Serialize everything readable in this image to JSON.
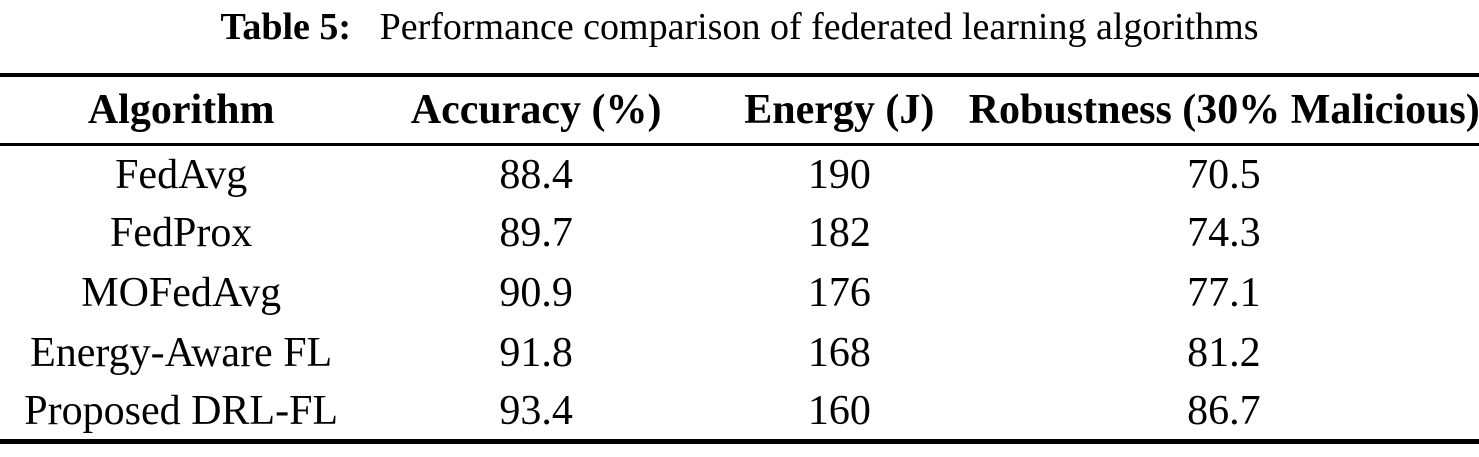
{
  "caption": {
    "label": "Table 5:",
    "text": "Performance comparison of federated learning algorithms"
  },
  "table": {
    "headers": [
      "Algorithm",
      "Accuracy (%)",
      "Energy (J)",
      "Robustness (30% Malicious)"
    ],
    "rows": [
      [
        "FedAvg",
        "88.4",
        "190",
        "70.5"
      ],
      [
        "FedProx",
        "89.7",
        "182",
        "74.3"
      ],
      [
        "MOFedAvg",
        "90.9",
        "176",
        "77.1"
      ],
      [
        "Energy-Aware FL",
        "91.8",
        "168",
        "81.2"
      ],
      [
        "Proposed DRL-FL",
        "93.4",
        "160",
        "86.7"
      ]
    ]
  },
  "chart_data": {
    "type": "table",
    "title": "Table 5: Performance comparison of federated learning algorithms",
    "columns": [
      "Algorithm",
      "Accuracy (%)",
      "Energy (J)",
      "Robustness (30% Malicious)"
    ],
    "series": [
      {
        "name": "Accuracy (%)",
        "categories": [
          "FedAvg",
          "FedProx",
          "MOFedAvg",
          "Energy-Aware FL",
          "Proposed DRL-FL"
        ],
        "values": [
          88.4,
          89.7,
          90.9,
          91.8,
          93.4
        ]
      },
      {
        "name": "Energy (J)",
        "categories": [
          "FedAvg",
          "FedProx",
          "MOFedAvg",
          "Energy-Aware FL",
          "Proposed DRL-FL"
        ],
        "values": [
          190,
          182,
          176,
          168,
          160
        ]
      },
      {
        "name": "Robustness (30% Malicious)",
        "categories": [
          "FedAvg",
          "FedProx",
          "MOFedAvg",
          "Energy-Aware FL",
          "Proposed DRL-FL"
        ],
        "values": [
          70.5,
          74.3,
          77.1,
          81.2,
          86.7
        ]
      }
    ]
  },
  "colors": {
    "text": "#000000",
    "background": "#ffffff",
    "rule": "#000000"
  }
}
